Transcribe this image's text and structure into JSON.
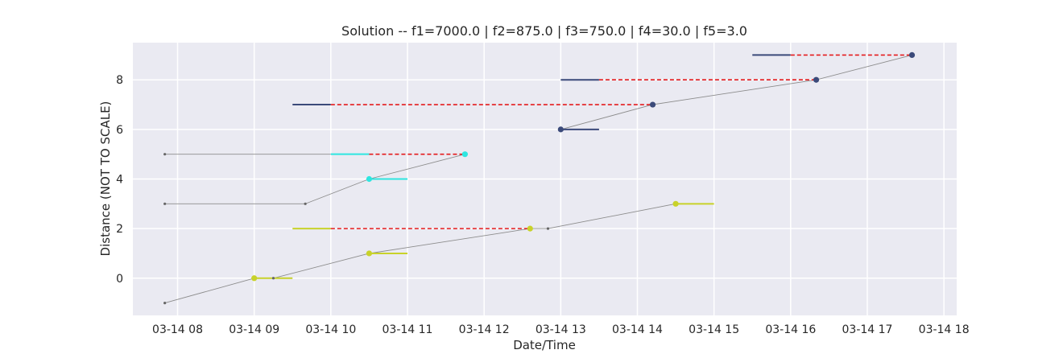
{
  "chart_data": {
    "type": "line",
    "title": "Solution -- f1=7000.0 | f2=875.0 | f3=750.0 | f4=30.0 | f5=3.0",
    "xlabel": "Date/Time",
    "ylabel": "Distance (NOT TO SCALE)",
    "x_unit": "time of day on 03-14 (HH:MM)",
    "xlim": [
      "07:25",
      "18:10"
    ],
    "ylim": [
      -1.5,
      9.5
    ],
    "x_ticks": [
      "03-14 08",
      "03-14 09",
      "03-14 10",
      "03-14 11",
      "03-14 12",
      "03-14 13",
      "03-14 14",
      "03-14 15",
      "03-14 16",
      "03-14 17",
      "03-14 18"
    ],
    "y_ticks": [
      0,
      2,
      4,
      6,
      8
    ],
    "grid": true,
    "colors": {
      "background": "#eaeaf2",
      "grid": "#ffffff",
      "path": "#8c8c8c",
      "delay": "#e41a1c",
      "yellow": "#c8d22a",
      "cyan": "#2ee6e0",
      "navy": "#3b4a7a"
    },
    "series": [
      {
        "kind": "path",
        "color": "path",
        "points": [
          {
            "x": "07:50",
            "y": -1
          },
          {
            "x": "09:00",
            "y": 0
          },
          {
            "x": "09:15",
            "y": 0
          },
          {
            "x": "10:30",
            "y": 1
          },
          {
            "x": "12:36",
            "y": 2
          },
          {
            "x": "12:50",
            "y": 2
          },
          {
            "x": "14:30",
            "y": 3
          }
        ]
      },
      {
        "kind": "path",
        "color": "path",
        "points": [
          {
            "x": "07:50",
            "y": 3
          },
          {
            "x": "09:40",
            "y": 3
          },
          {
            "x": "10:30",
            "y": 4
          },
          {
            "x": "11:45",
            "y": 5
          }
        ]
      },
      {
        "kind": "path",
        "color": "path",
        "points": [
          {
            "x": "07:50",
            "y": 5
          },
          {
            "x": "10:00",
            "y": 5
          }
        ]
      },
      {
        "kind": "path",
        "color": "path",
        "points": [
          {
            "x": "13:00",
            "y": 6
          },
          {
            "x": "14:12",
            "y": 7
          },
          {
            "x": "16:20",
            "y": 8
          },
          {
            "x": "17:35",
            "y": 9
          }
        ]
      }
    ],
    "windows": [
      {
        "color": "yellow",
        "y": 0,
        "x_start": "09:00",
        "x_end": "09:30"
      },
      {
        "color": "yellow",
        "y": 1,
        "x_start": "10:30",
        "x_end": "11:00"
      },
      {
        "color": "yellow",
        "y": 2,
        "x_start": "09:30",
        "x_end": "10:00"
      },
      {
        "color": "yellow",
        "y": 3,
        "x_start": "14:30",
        "x_end": "15:00"
      },
      {
        "color": "cyan",
        "y": 4,
        "x_start": "10:30",
        "x_end": "11:00"
      },
      {
        "color": "cyan",
        "y": 5,
        "x_start": "10:00",
        "x_end": "10:30"
      },
      {
        "color": "navy",
        "y": 6,
        "x_start": "13:00",
        "x_end": "13:30"
      },
      {
        "color": "navy",
        "y": 7,
        "x_start": "09:30",
        "x_end": "10:00"
      },
      {
        "color": "navy",
        "y": 8,
        "x_start": "13:00",
        "x_end": "13:30"
      },
      {
        "color": "navy",
        "y": 9,
        "x_start": "15:30",
        "x_end": "16:00"
      }
    ],
    "delays": [
      {
        "y": 2,
        "x_start": "10:00",
        "x_end": "12:36"
      },
      {
        "y": 5,
        "x_start": "10:30",
        "x_end": "11:45"
      },
      {
        "y": 7,
        "x_start": "10:00",
        "x_end": "14:12"
      },
      {
        "y": 8,
        "x_start": "13:30",
        "x_end": "16:20"
      },
      {
        "y": 9,
        "x_start": "16:00",
        "x_end": "17:35"
      }
    ],
    "stops": [
      {
        "color": "yellow",
        "x": "09:00",
        "y": 0
      },
      {
        "color": "yellow",
        "x": "10:30",
        "y": 1
      },
      {
        "color": "yellow",
        "x": "12:36",
        "y": 2
      },
      {
        "color": "yellow",
        "x": "14:30",
        "y": 3
      },
      {
        "color": "cyan",
        "x": "10:30",
        "y": 4
      },
      {
        "color": "cyan",
        "x": "11:45",
        "y": 5
      },
      {
        "color": "navy",
        "x": "13:00",
        "y": 6
      },
      {
        "color": "navy",
        "x": "14:12",
        "y": 7
      },
      {
        "color": "navy",
        "x": "16:20",
        "y": 8
      },
      {
        "color": "navy",
        "x": "17:35",
        "y": 9
      }
    ],
    "waypoints": [
      {
        "x": "07:50",
        "y": -1
      },
      {
        "x": "09:15",
        "y": 0
      },
      {
        "x": "12:50",
        "y": 2
      },
      {
        "x": "07:50",
        "y": 3
      },
      {
        "x": "09:40",
        "y": 3
      },
      {
        "x": "07:50",
        "y": 5
      }
    ]
  }
}
